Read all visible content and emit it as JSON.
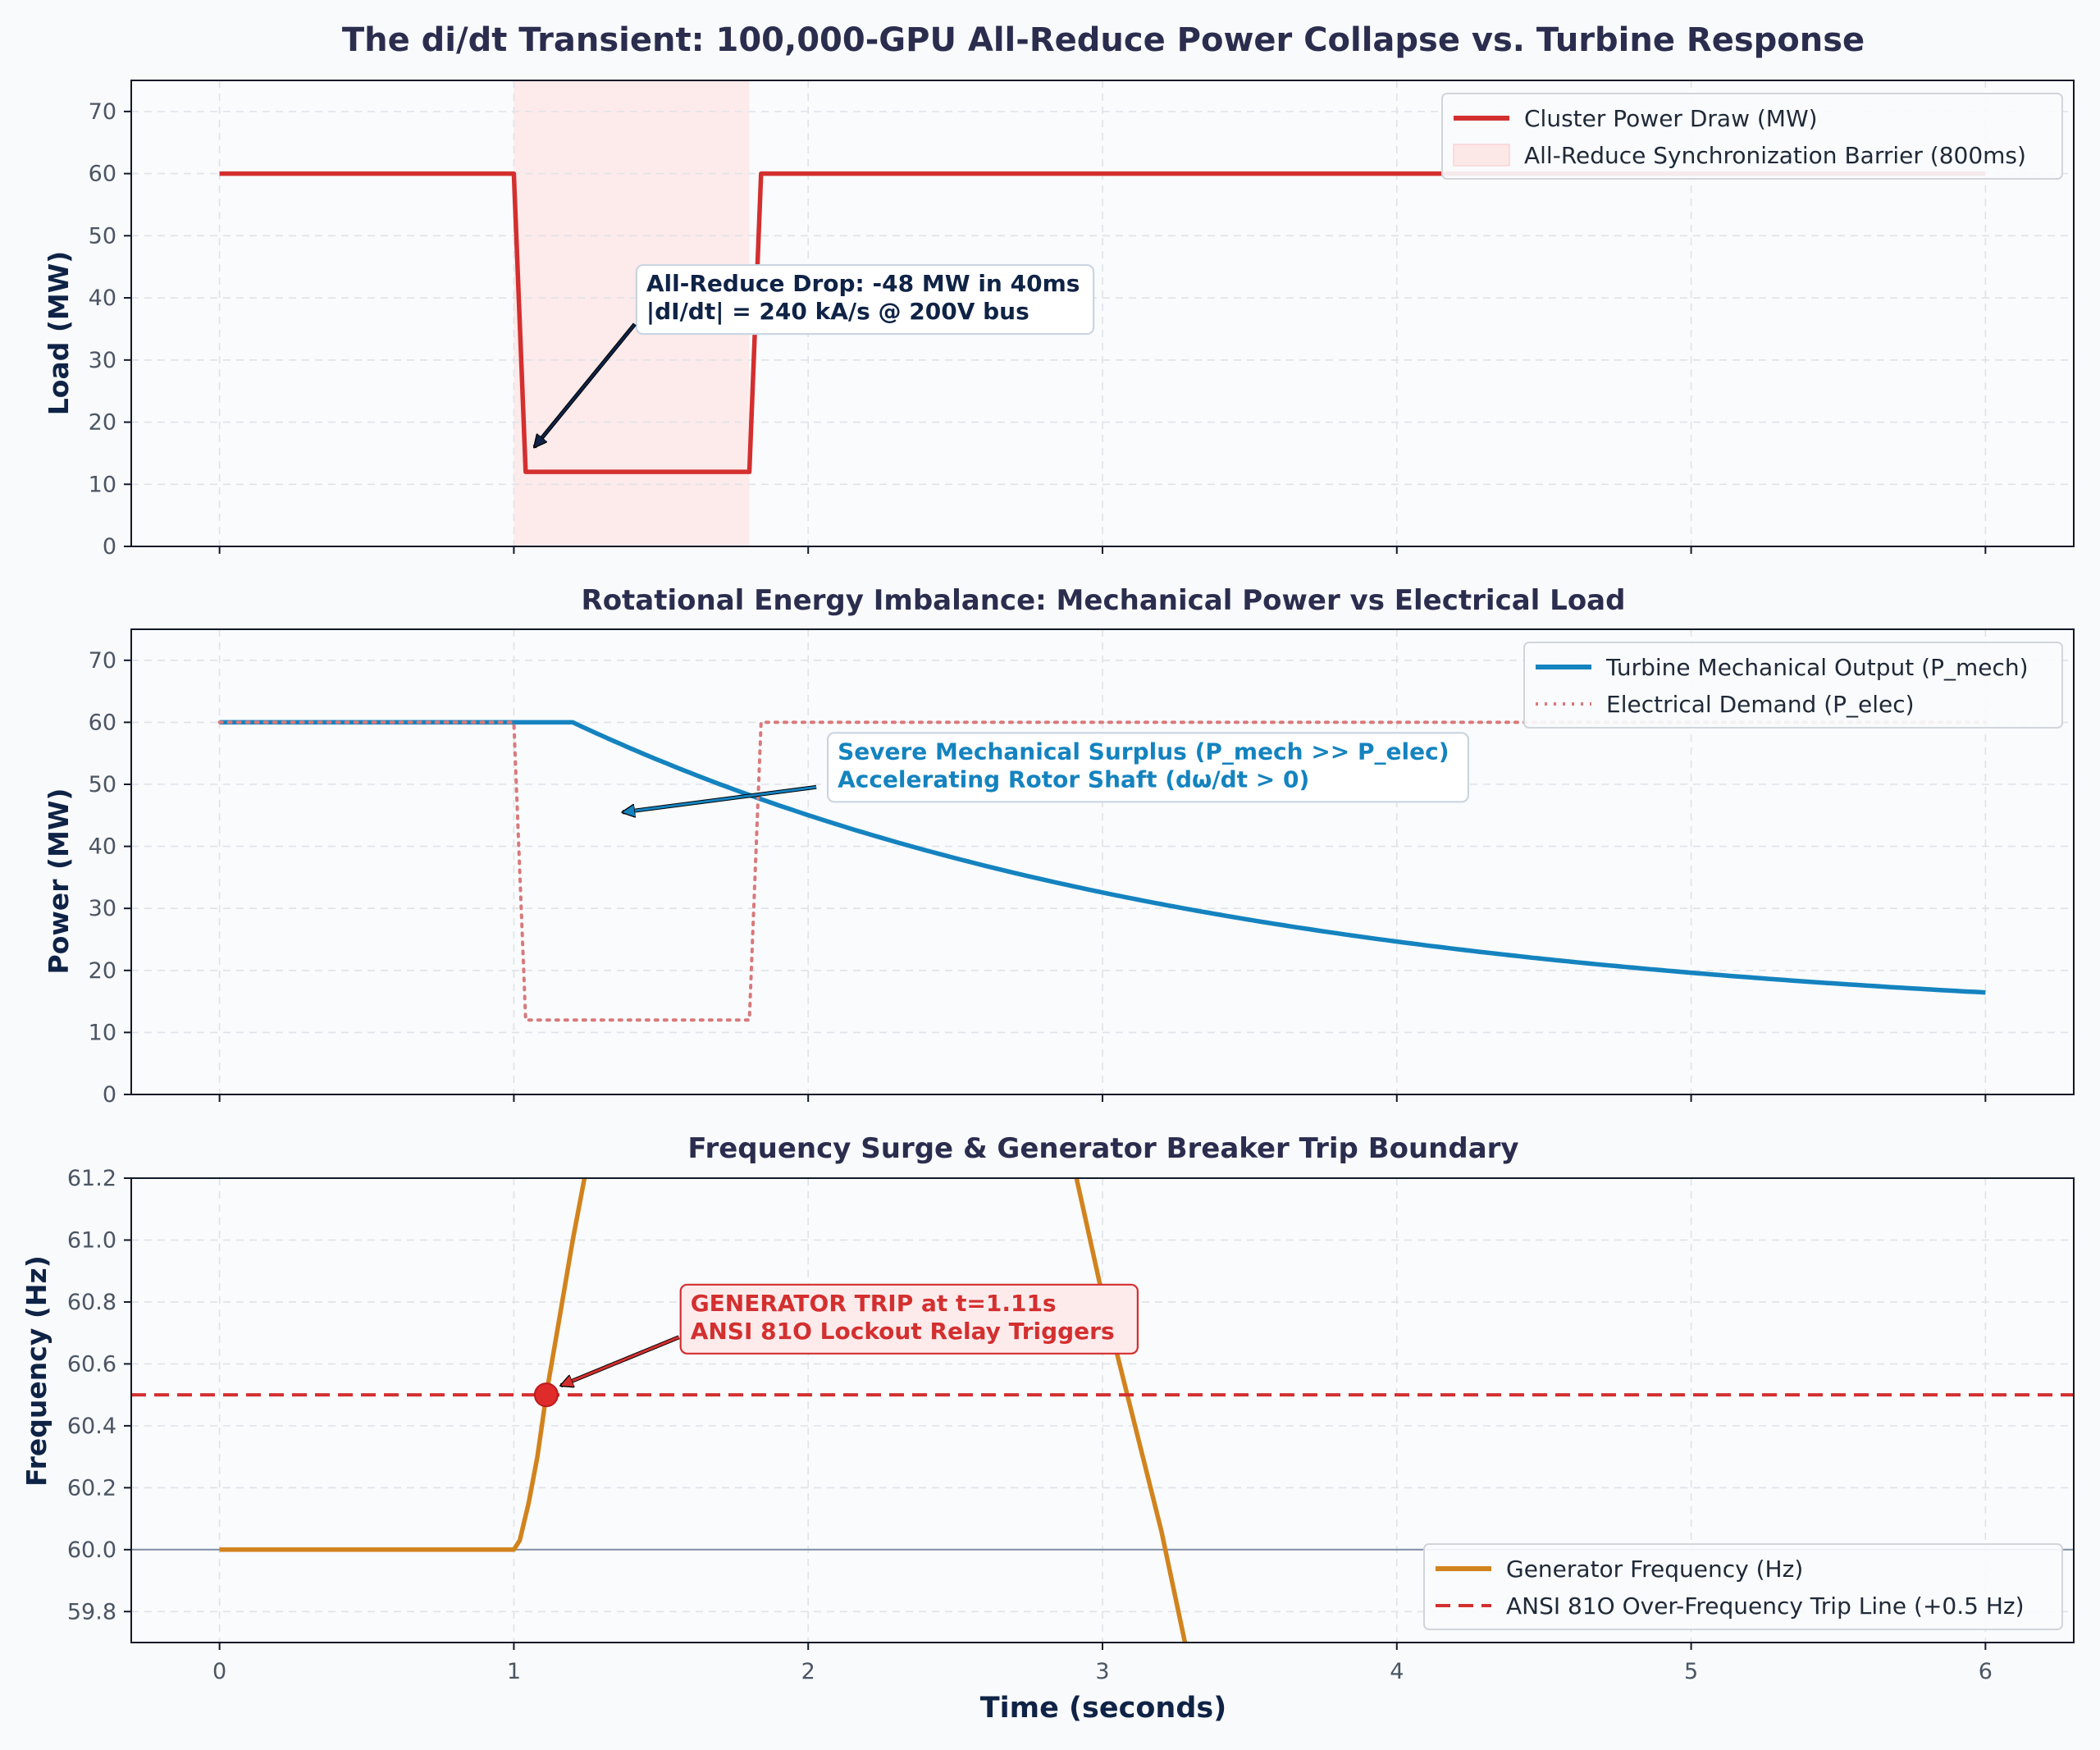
{
  "figure": {
    "title": "The di/dt Transient: 100,000-GPU All-Reduce Power Collapse vs. Turbine Response",
    "xlabel": "Time (seconds)",
    "colors": {
      "background": "#f8fafc",
      "cluster_power": "#d42f2f",
      "barrier_shade": "#fde8e8",
      "turbine": "#1483bf",
      "electrical_demand": "#d9797a",
      "frequency": "#d2831d",
      "trip_line": "#d42f2f",
      "baseline": "#7f8ea3"
    }
  },
  "chart_data": [
    {
      "type": "line",
      "title": "",
      "xlabel": "",
      "ylabel": "Load (MW)",
      "xlim": [
        -0.3,
        6.3
      ],
      "ylim": [
        0,
        75
      ],
      "xticks": [
        "0",
        "1",
        "2",
        "3",
        "4",
        "5",
        "6"
      ],
      "yticks": [
        "0",
        "10",
        "20",
        "30",
        "40",
        "50",
        "60",
        "70"
      ],
      "grid": true,
      "legend": "top-right",
      "shaded_regions": [
        {
          "name": "All-Reduce Synchronization Barrier (800ms)",
          "x": [
            1.0,
            1.8
          ]
        }
      ],
      "series": [
        {
          "name": "Cluster Power Draw (MW)",
          "style": "solid",
          "x": [
            0,
            1.0,
            1.04,
            1.8,
            1.84,
            6.0
          ],
          "y": [
            60,
            60,
            12,
            12,
            60,
            60
          ]
        }
      ],
      "annotations": [
        {
          "lines": [
            "All-Reduce Drop: -48 MW in 40ms",
            "|dI/dt| = 240 kA/s @ 200V bus"
          ],
          "point": [
            1.07,
            16
          ],
          "text_at": [
            1.45,
            40
          ],
          "color": "#0f2346",
          "bg": "#ffffff",
          "border": "#cbd5e1"
        }
      ]
    },
    {
      "type": "line",
      "title": "Rotational Energy Imbalance: Mechanical Power vs Electrical Load",
      "xlabel": "",
      "ylabel": "Power (MW)",
      "xlim": [
        -0.3,
        6.3
      ],
      "ylim": [
        0,
        75
      ],
      "xticks": [
        "0",
        "1",
        "2",
        "3",
        "4",
        "5",
        "6"
      ],
      "yticks": [
        "0",
        "10",
        "20",
        "30",
        "40",
        "50",
        "60",
        "70"
      ],
      "grid": true,
      "legend": "top-right",
      "series": [
        {
          "name": "Turbine Mechanical Output (P_mech)",
          "style": "solid",
          "x": [
            0,
            1.2,
            1.5,
            2.0,
            2.5,
            3.0,
            3.5,
            4.0,
            4.5,
            5.0,
            5.5,
            6.0
          ],
          "y": [
            60,
            60,
            52,
            43,
            35.8,
            29.7,
            25.6,
            22.3,
            19.9,
            17.9,
            16.5,
            15.4
          ]
        },
        {
          "name": "Electrical Demand (P_elec)",
          "style": "dotted",
          "x": [
            0,
            1.0,
            1.04,
            1.8,
            1.84,
            6.0
          ],
          "y": [
            60,
            60,
            12,
            12,
            60,
            60
          ]
        }
      ],
      "annotations": [
        {
          "lines": [
            "Severe Mechanical Surplus (P_mech >> P_elec)",
            "Accelerating Rotor Shaft (dω/dt > 0)"
          ],
          "point": [
            1.37,
            45.5
          ],
          "text_at": [
            2.1,
            53
          ],
          "color": "#1483bf",
          "bg": "#ffffff",
          "border": "#cbd5e1"
        }
      ]
    },
    {
      "type": "line",
      "title": "Frequency Surge & Generator Breaker Trip Boundary",
      "xlabel": "Time (seconds)",
      "ylabel": "Frequency (Hz)",
      "xlim": [
        -0.3,
        6.3
      ],
      "ylim": [
        59.7,
        61.2
      ],
      "xticks": [
        "0",
        "1",
        "2",
        "3",
        "4",
        "5",
        "6"
      ],
      "yticks": [
        "59.8",
        "60.0",
        "60.2",
        "60.4",
        "60.6",
        "60.8",
        "61.0",
        "61.2"
      ],
      "grid": true,
      "legend": "bottom-right",
      "reference_lines": [
        {
          "y": 60.0,
          "style": "solid",
          "color": "#7f8ea3"
        }
      ],
      "series": [
        {
          "name": "Generator Frequency (Hz)",
          "style": "solid",
          "x": [
            0,
            1.0,
            1.02,
            1.05,
            1.08,
            1.11,
            1.15,
            1.2,
            1.25,
            2.9,
            3.0,
            3.1,
            3.2,
            3.28
          ],
          "y": [
            60.0,
            60.0,
            60.03,
            60.15,
            60.3,
            60.5,
            60.72,
            61.0,
            61.25,
            61.25,
            60.82,
            60.44,
            60.06,
            59.7
          ]
        },
        {
          "name": "ANSI 81O Over-Frequency Trip Line (+0.5 Hz)",
          "style": "dashed",
          "x": [
            -0.3,
            6.3
          ],
          "y": [
            60.5,
            60.5
          ]
        }
      ],
      "markers": [
        {
          "x": 1.11,
          "y": 60.5,
          "color": "#e02b2b"
        }
      ],
      "annotations": [
        {
          "lines": [
            "GENERATOR TRIP at t=1.11s",
            "ANSI 81O Lockout Relay Triggers"
          ],
          "point": [
            1.16,
            60.53
          ],
          "text_at": [
            1.6,
            60.75
          ],
          "color": "#d42f2f",
          "bg": "#fdebec",
          "border": "#d42f2f"
        }
      ]
    }
  ]
}
